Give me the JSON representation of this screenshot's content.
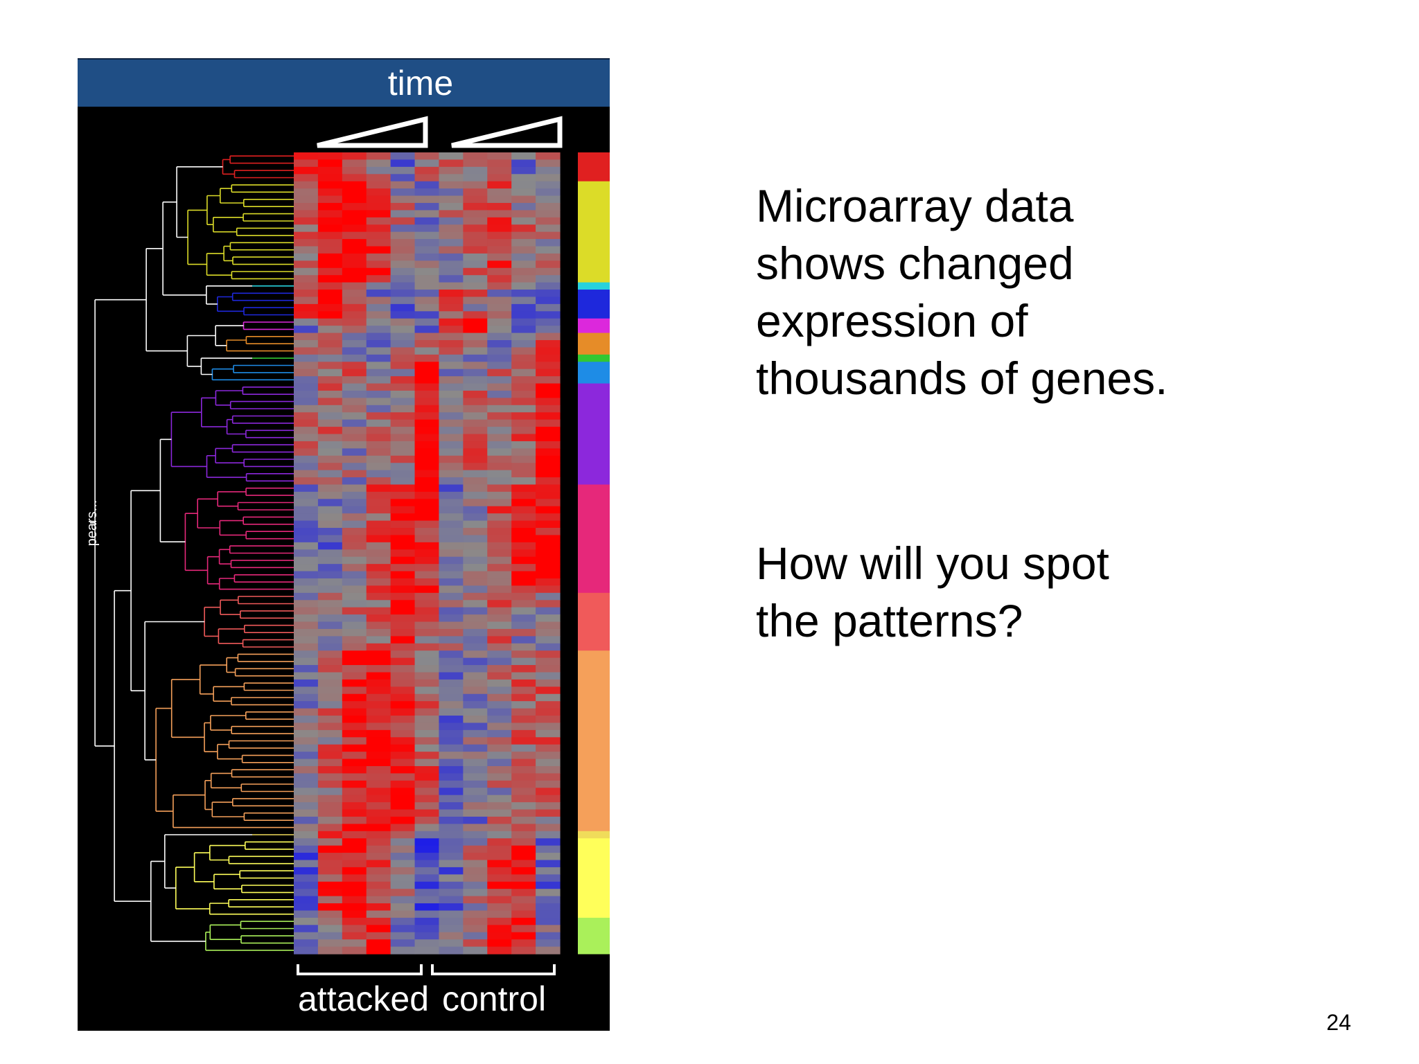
{
  "figure": {
    "header_label": "time",
    "dendrogram_label": "pears...",
    "group_labels": [
      "attacked",
      "control"
    ]
  },
  "slide": {
    "text_block_1": [
      "Microarray data",
      "shows changed",
      "expression of",
      "thousands of genes."
    ],
    "text_block_2": [
      "How will you spot",
      "the patterns?"
    ],
    "page_number": "24"
  },
  "clusters": [
    {
      "color": "#e02020",
      "rows": 4,
      "pattern": [
        0.7,
        1.0,
        0.6,
        0.0,
        -0.5,
        0.2,
        0.3,
        0.0,
        0.1,
        -0.3,
        0.2
      ]
    },
    {
      "color": "#dcdc28",
      "rows": 14,
      "pattern": [
        0.3,
        0.9,
        1.0,
        0.8,
        0.1,
        -0.2,
        0.0,
        0.3,
        0.6,
        0.2,
        0.0
      ]
    },
    {
      "color": "#28d2dc",
      "rows": 1,
      "pattern": [
        0.2,
        0.5,
        0.3,
        0.0,
        -0.3,
        0.1,
        0.0,
        0.2,
        0.0,
        -0.4,
        -0.4
      ]
    },
    {
      "color": "#1e28dc",
      "rows": 4,
      "pattern": [
        0.6,
        0.8,
        0.5,
        -0.2,
        -0.4,
        -0.3,
        0.4,
        0.2,
        0.0,
        -0.5,
        -0.5
      ]
    },
    {
      "color": "#dc28dc",
      "rows": 2,
      "pattern": [
        -0.4,
        0.2,
        0.3,
        -0.2,
        0.4,
        -0.5,
        0.5,
        0.8,
        0.3,
        -0.2,
        0.0
      ]
    },
    {
      "color": "#e68c28",
      "rows": 3,
      "pattern": [
        0.0,
        0.4,
        -0.4,
        -0.5,
        0.2,
        0.0,
        0.3,
        0.0,
        -0.3,
        0.1,
        0.6
      ]
    },
    {
      "color": "#32c832",
      "rows": 1,
      "pattern": [
        0.0,
        0.1,
        0.2,
        -0.2,
        0.1,
        0.5,
        0.0,
        0.0,
        0.0,
        0.0,
        0.5
      ]
    },
    {
      "color": "#1e8ce6",
      "rows": 3,
      "pattern": [
        0.1,
        0.0,
        0.3,
        -0.2,
        0.2,
        0.9,
        -0.1,
        0.0,
        0.1,
        0.2,
        0.8
      ]
    },
    {
      "color": "#8c28dc",
      "rows": 14,
      "pattern": [
        0.1,
        0.3,
        0.0,
        0.1,
        0.3,
        1.0,
        0.2,
        0.3,
        0.1,
        0.4,
        1.0
      ]
    },
    {
      "color": "#e6287a",
      "rows": 15,
      "pattern": [
        -0.4,
        -0.3,
        0.0,
        0.5,
        0.9,
        0.7,
        -0.3,
        -0.1,
        0.5,
        0.9,
        1.0
      ]
    },
    {
      "color": "#f05a5a",
      "rows": 8,
      "pattern": [
        0.0,
        0.1,
        0.2,
        0.4,
        0.8,
        0.3,
        0.0,
        0.1,
        0.3,
        0.0,
        0.1
      ]
    },
    {
      "color": "#f5a05a",
      "rows": 25,
      "pattern": [
        -0.2,
        0.3,
        0.8,
        0.9,
        0.7,
        0.4,
        -0.3,
        -0.2,
        0.1,
        0.3,
        0.3
      ]
    },
    {
      "color": "#f0dc5a",
      "rows": 1,
      "pattern": [
        0.3,
        0.5,
        0.6,
        0.5,
        0.2,
        0.0,
        0.1,
        0.2,
        0.2,
        0.0,
        0.0
      ]
    },
    {
      "color": "#ffff5a",
      "rows": 11,
      "pattern": [
        -0.5,
        0.6,
        0.8,
        0.6,
        0.0,
        -0.6,
        -0.4,
        0.1,
        0.7,
        0.8,
        -0.4
      ]
    },
    {
      "color": "#aaf05a",
      "rows": 5,
      "pattern": [
        -0.4,
        0.0,
        0.5,
        0.9,
        -0.2,
        -0.3,
        -0.2,
        0.2,
        0.8,
        0.9,
        -0.2
      ]
    }
  ]
}
